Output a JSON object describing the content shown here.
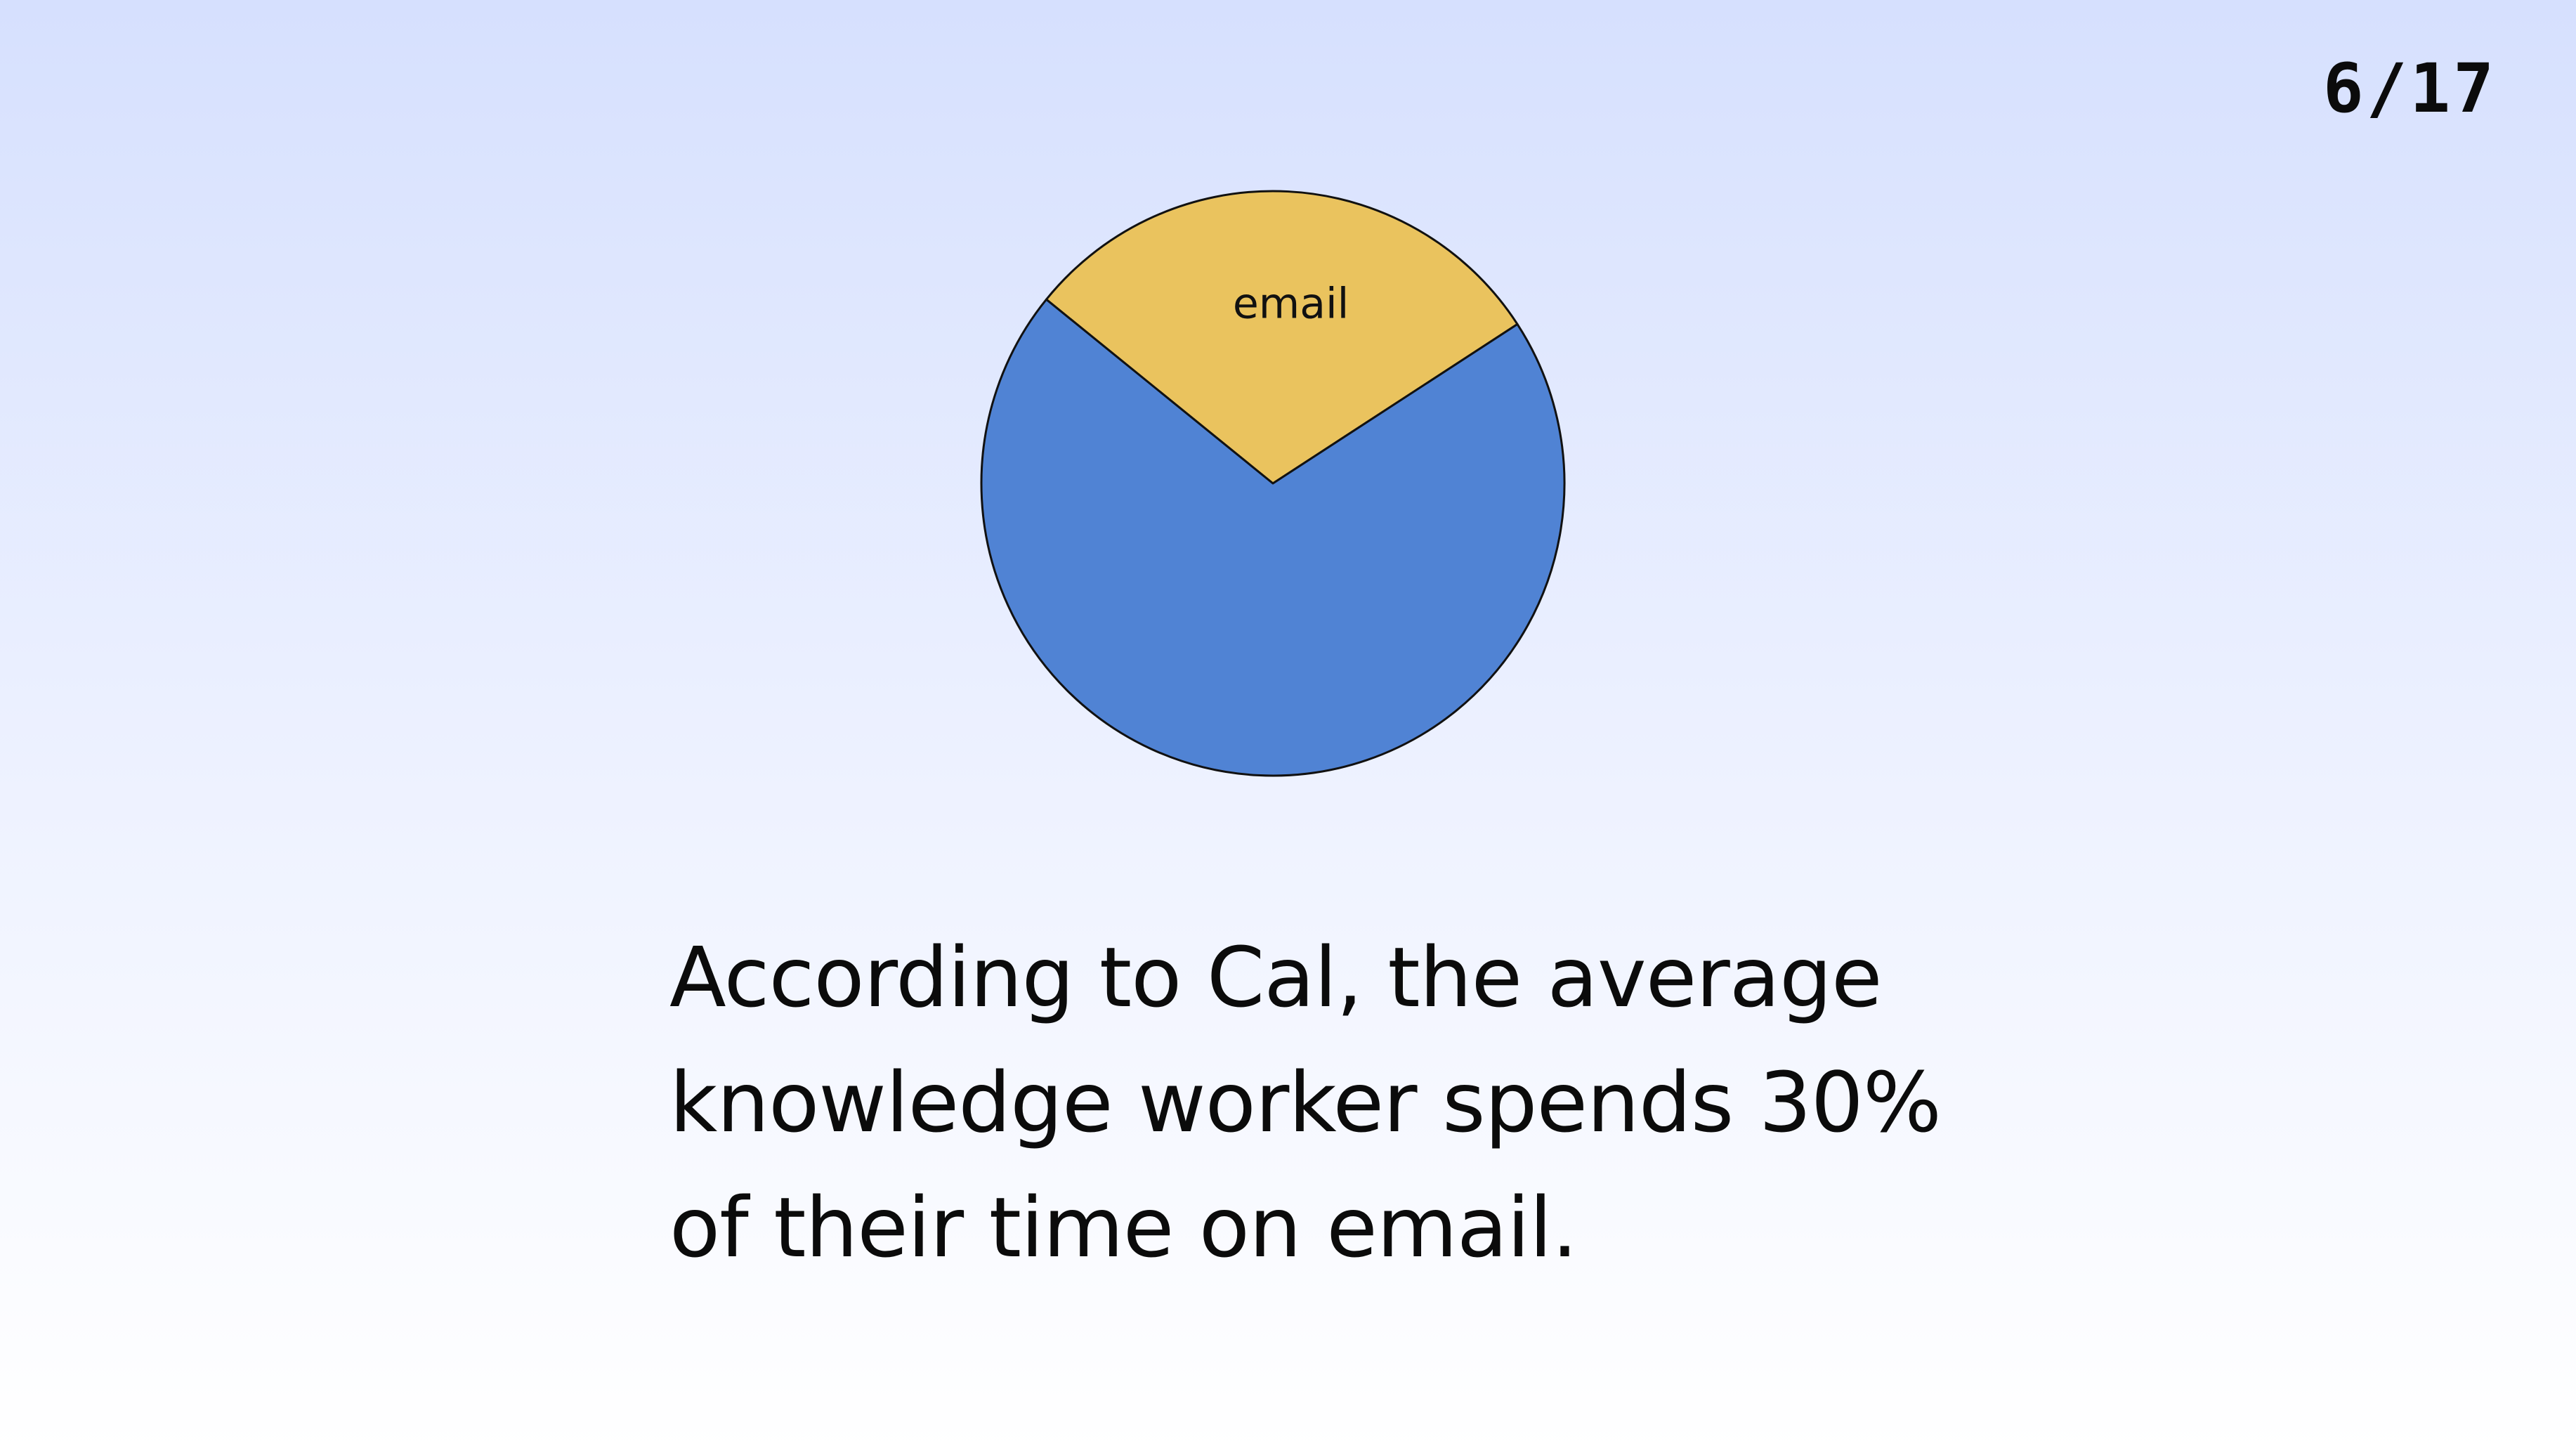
{
  "slide": {
    "page_indicator": "6/17"
  },
  "caption": {
    "lines": [
      "According to Cal, the average",
      "knowledge worker spends 30%",
      "of their time on email."
    ]
  },
  "chart_data": {
    "type": "pie",
    "slices": [
      {
        "label": "email",
        "value": 30,
        "color": "#eac35e"
      },
      {
        "label": "",
        "value": 70,
        "color": "#5083d4"
      }
    ],
    "start_angle_deg": -51,
    "direction": "clockwise",
    "legend": "none",
    "title": ""
  }
}
